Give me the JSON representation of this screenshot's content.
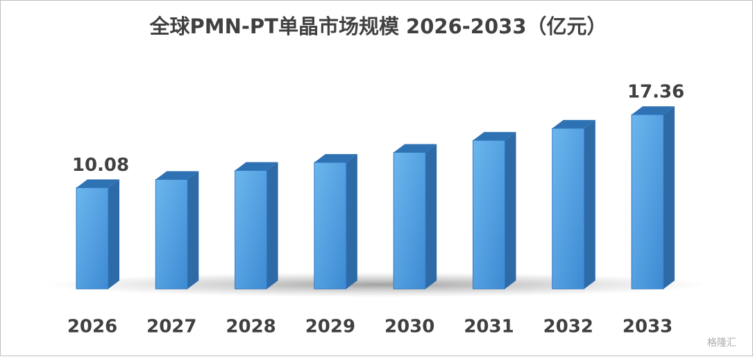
{
  "chart_data": {
    "type": "bar3d",
    "title": "全球PMN-PT单晶市场规模 2026-2033（亿元）",
    "categories": [
      "2026",
      "2027",
      "2028",
      "2029",
      "2030",
      "2031",
      "2032",
      "2033"
    ],
    "values": [
      10.08,
      10.9,
      11.8,
      12.6,
      13.6,
      14.8,
      16.0,
      17.36
    ],
    "value_labels": [
      "10.08",
      null,
      null,
      null,
      null,
      null,
      null,
      "17.36"
    ],
    "color": "#3e8fd6"
  },
  "watermark": "格隆汇"
}
